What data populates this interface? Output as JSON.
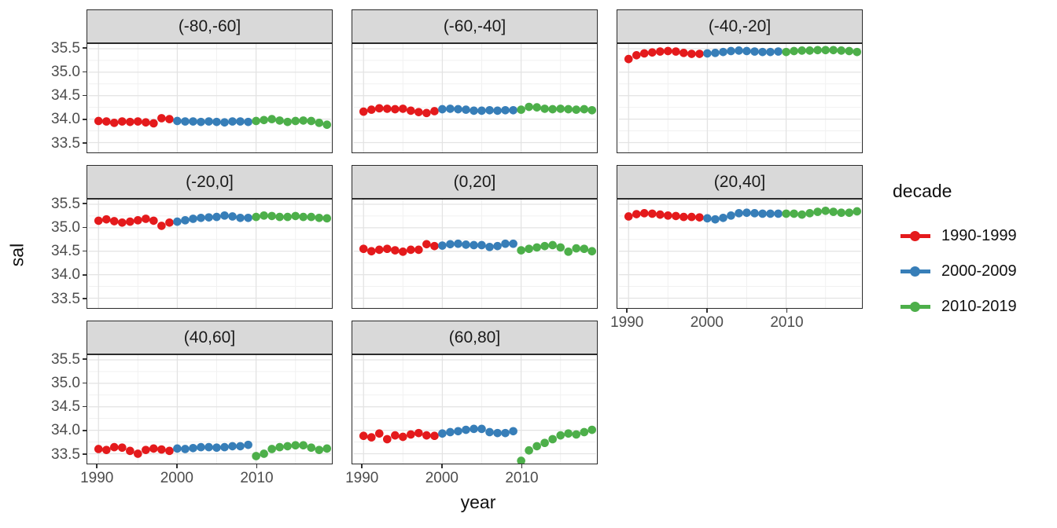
{
  "chart_data": {
    "type": "scatter",
    "title": "",
    "xlabel": "year",
    "ylabel": "sal",
    "legend_title": "decade",
    "legend_position": "right",
    "grid": true,
    "xlim": [
      1988.7,
      2019.5
    ],
    "ylim": [
      33.29,
      35.6
    ],
    "x_ticks": [
      1990,
      2000,
      2010
    ],
    "x_minor": [
      1995,
      2005,
      2015
    ],
    "y_ticks": [
      35.5,
      35.0,
      34.5,
      34.0,
      33.5
    ],
    "y_minor": [
      35.25,
      34.75,
      34.25,
      33.75
    ],
    "series": [
      {
        "name": "1990-1999",
        "color": "#e41a1c",
        "start_year": 1990
      },
      {
        "name": "2000-2009",
        "color": "#377eb8",
        "start_year": 2000
      },
      {
        "name": "2010-2019",
        "color": "#4daf4a",
        "start_year": 2010
      }
    ],
    "facets": [
      {
        "label": "(-80,-60]",
        "values": [
          [
            33.96,
            33.95,
            33.92,
            33.95,
            33.94,
            33.95,
            33.93,
            33.91,
            34.02,
            34.0
          ],
          [
            33.96,
            33.95,
            33.95,
            33.94,
            33.95,
            33.94,
            33.93,
            33.95,
            33.95,
            33.94
          ],
          [
            33.96,
            33.98,
            34.0,
            33.97,
            33.94,
            33.96,
            33.97,
            33.96,
            33.92,
            33.88
          ]
        ]
      },
      {
        "label": "(-60,-40]",
        "values": [
          [
            34.16,
            34.2,
            34.23,
            34.22,
            34.21,
            34.22,
            34.18,
            34.15,
            34.13,
            34.17
          ],
          [
            34.21,
            34.22,
            34.21,
            34.2,
            34.18,
            34.18,
            34.19,
            34.18,
            34.19,
            34.19
          ],
          [
            34.2,
            34.26,
            34.25,
            34.22,
            34.21,
            34.22,
            34.21,
            34.2,
            34.21,
            34.19
          ]
        ]
      },
      {
        "label": "(-40,-20]",
        "values": [
          [
            35.28,
            35.36,
            35.4,
            35.42,
            35.44,
            35.45,
            35.44,
            35.41,
            35.39,
            35.39
          ],
          [
            35.4,
            35.41,
            35.43,
            35.45,
            35.46,
            35.45,
            35.44,
            35.43,
            35.43,
            35.44
          ],
          [
            35.43,
            35.45,
            35.46,
            35.46,
            35.47,
            35.47,
            35.47,
            35.46,
            35.45,
            35.43
          ]
        ]
      },
      {
        "label": "(-20,0]",
        "values": [
          [
            35.15,
            35.18,
            35.14,
            35.11,
            35.13,
            35.16,
            35.19,
            35.15,
            35.04,
            35.11
          ],
          [
            35.13,
            35.16,
            35.19,
            35.21,
            35.22,
            35.23,
            35.26,
            35.24,
            35.21,
            35.21
          ],
          [
            35.23,
            35.26,
            35.25,
            35.23,
            35.23,
            35.25,
            35.23,
            35.23,
            35.21,
            35.2
          ]
        ]
      },
      {
        "label": "(0,20]",
        "values": [
          [
            34.55,
            34.5,
            34.53,
            34.55,
            34.52,
            34.49,
            34.53,
            34.53,
            34.65,
            34.61
          ],
          [
            34.62,
            34.65,
            34.66,
            34.64,
            34.63,
            34.63,
            34.59,
            34.61,
            34.66,
            34.66
          ],
          [
            34.52,
            34.55,
            34.58,
            34.61,
            34.63,
            34.58,
            34.49,
            34.56,
            34.55,
            34.5
          ]
        ]
      },
      {
        "label": "(20,40]",
        "values": [
          [
            35.24,
            35.29,
            35.31,
            35.3,
            35.28,
            35.26,
            35.25,
            35.23,
            35.23,
            35.22
          ],
          [
            35.2,
            35.18,
            35.21,
            35.26,
            35.31,
            35.32,
            35.31,
            35.3,
            35.3,
            35.3
          ],
          [
            35.3,
            35.3,
            35.28,
            35.31,
            35.34,
            35.36,
            35.34,
            35.32,
            35.32,
            35.35
          ]
        ]
      },
      {
        "label": "(40,60]",
        "values": [
          [
            33.6,
            33.58,
            33.64,
            33.63,
            33.56,
            33.5,
            33.58,
            33.61,
            33.59,
            33.56
          ],
          [
            33.61,
            33.6,
            33.62,
            33.64,
            33.64,
            33.63,
            33.64,
            33.66,
            33.66,
            33.69
          ],
          [
            33.45,
            33.5,
            33.6,
            33.64,
            33.66,
            33.68,
            33.68,
            33.63,
            33.58,
            33.61
          ]
        ]
      },
      {
        "label": "(60,80]",
        "values": [
          [
            33.88,
            33.85,
            33.93,
            33.81,
            33.89,
            33.86,
            33.91,
            33.94,
            33.89,
            33.88
          ],
          [
            33.93,
            33.96,
            33.98,
            34.01,
            34.03,
            34.03,
            33.96,
            33.94,
            33.94,
            33.98
          ],
          [
            33.35,
            33.57,
            33.66,
            33.73,
            33.81,
            33.89,
            33.93,
            33.91,
            33.96,
            34.01
          ]
        ]
      }
    ],
    "colors": {
      "strip_bg": "#d9d9d9",
      "panel_border": "#2b2b2b",
      "grid_major": "#e3e3e3",
      "grid_minor": "#f1f1f1",
      "axis_text": "#4d4d4d"
    }
  }
}
